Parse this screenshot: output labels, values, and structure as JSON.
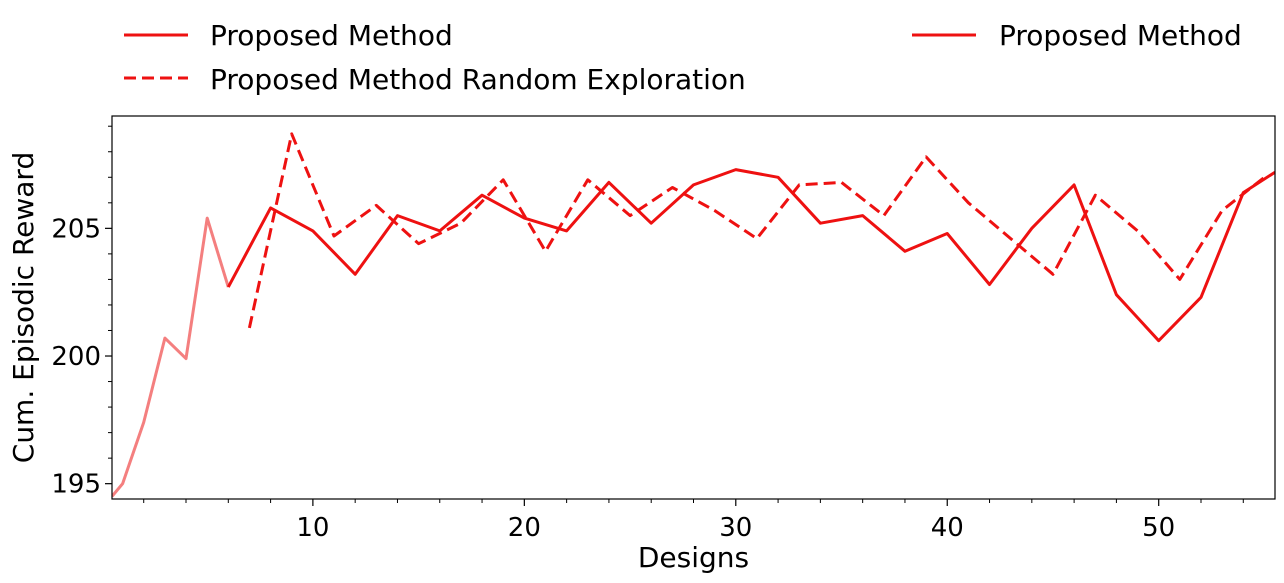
{
  "chart_data": {
    "type": "line",
    "title": "",
    "xlabel": "Designs",
    "ylabel": "Cum. Episodic Reward",
    "xlim": [
      0.5,
      55.5
    ],
    "ylim": [
      194.4,
      209.4
    ],
    "xticks": [
      10,
      20,
      30,
      40,
      50
    ],
    "yticks": [
      195,
      200,
      205
    ],
    "x_minor_step": 2,
    "y_minor_step": 1,
    "grid": false,
    "legend_left": [
      "Proposed Method",
      "Proposed Method Random Exploration"
    ],
    "legend_right": [
      "Proposed Method"
    ],
    "colors": {
      "main": "#ee1111",
      "faded": "#f47f7f"
    },
    "series": [
      {
        "name": "Proposed Method",
        "style": "solid-faded",
        "x": [
          0.5,
          1,
          2,
          3,
          4,
          5,
          6
        ],
        "y": [
          194.5,
          195.0,
          197.4,
          200.7,
          199.9,
          205.4,
          202.7
        ]
      },
      {
        "name": "Proposed Method",
        "style": "solid",
        "x": [
          6,
          8,
          10,
          12,
          14,
          16,
          18,
          20,
          22,
          24,
          26,
          28,
          30,
          32,
          34,
          36,
          38,
          40,
          42,
          44,
          46,
          48,
          50,
          52,
          54,
          55.5
        ],
        "y": [
          202.7,
          205.8,
          204.9,
          203.2,
          205.5,
          204.9,
          206.3,
          205.4,
          204.9,
          206.8,
          205.2,
          206.7,
          207.3,
          207.0,
          205.2,
          205.5,
          204.1,
          204.8,
          202.8,
          205.0,
          206.7,
          202.4,
          200.6,
          202.3,
          206.4,
          207.2
        ]
      },
      {
        "name": "Proposed Method Random Exploration",
        "style": "dashed",
        "x": [
          7,
          9,
          11,
          13,
          15,
          17,
          19,
          21,
          23,
          25,
          27,
          29,
          31,
          33,
          35,
          37,
          39,
          41,
          43,
          45,
          47,
          49,
          51,
          53,
          55
        ],
        "y": [
          201.1,
          208.7,
          204.7,
          205.9,
          204.4,
          205.2,
          206.9,
          204.1,
          206.9,
          205.5,
          206.6,
          205.7,
          204.6,
          206.7,
          206.8,
          205.5,
          207.8,
          206.0,
          204.6,
          203.2,
          206.3,
          204.9,
          203.0,
          205.7,
          207.0
        ]
      }
    ]
  }
}
